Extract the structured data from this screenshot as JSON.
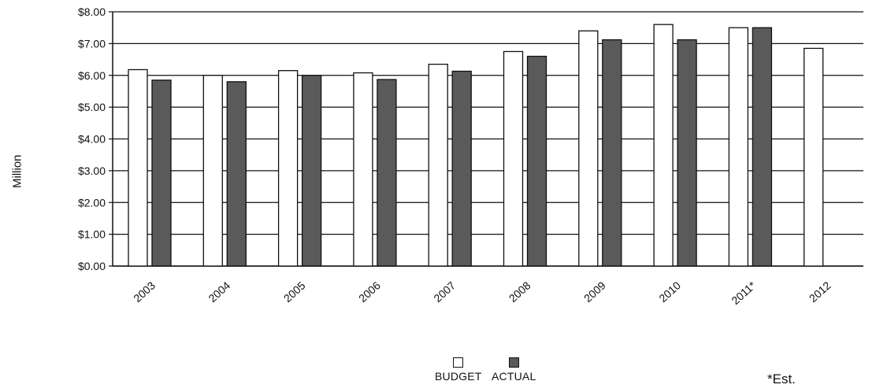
{
  "chart_data": {
    "type": "bar",
    "categories": [
      "2003",
      "2004",
      "2005",
      "2006",
      "2007",
      "2008",
      "2009",
      "2010",
      "2011*",
      "2012"
    ],
    "series": [
      {
        "name": "BUDGET",
        "values": [
          6.18,
          6.0,
          6.15,
          6.08,
          6.35,
          6.75,
          7.4,
          7.6,
          7.5,
          6.85
        ],
        "color": "#ffffff"
      },
      {
        "name": "ACTUAL",
        "values": [
          5.85,
          5.8,
          6.0,
          5.87,
          6.13,
          6.6,
          7.12,
          7.12,
          7.5,
          null
        ],
        "color": "#5a5a5a"
      }
    ],
    "ylabel": "Million",
    "xlabel": "",
    "ylim": [
      0,
      8
    ],
    "yticks": [
      "$0.00",
      "$1.00",
      "$2.00",
      "$3.00",
      "$4.00",
      "$5.00",
      "$6.00",
      "$7.00",
      "$8.00"
    ],
    "grid": true,
    "legend_position": "bottom-center",
    "footnote": "*Est."
  }
}
